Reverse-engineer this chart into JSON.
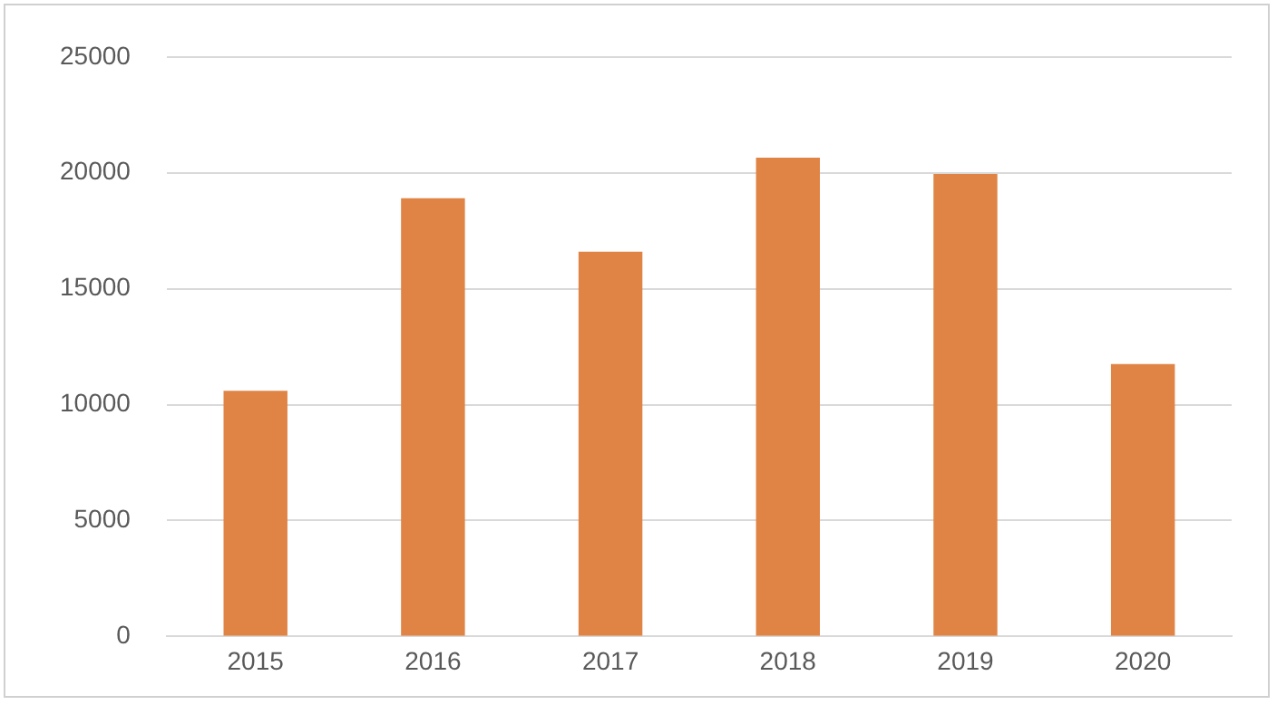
{
  "chart_data": {
    "type": "bar",
    "categories": [
      "2015",
      "2016",
      "2017",
      "2018",
      "2019",
      "2020"
    ],
    "values": [
      10600,
      18900,
      16600,
      20650,
      19950,
      11750
    ],
    "color": "#e08446",
    "ylim": [
      0,
      25000
    ],
    "yticks": [
      0,
      5000,
      10000,
      15000,
      20000,
      25000
    ],
    "grid": "y",
    "legend": false
  }
}
